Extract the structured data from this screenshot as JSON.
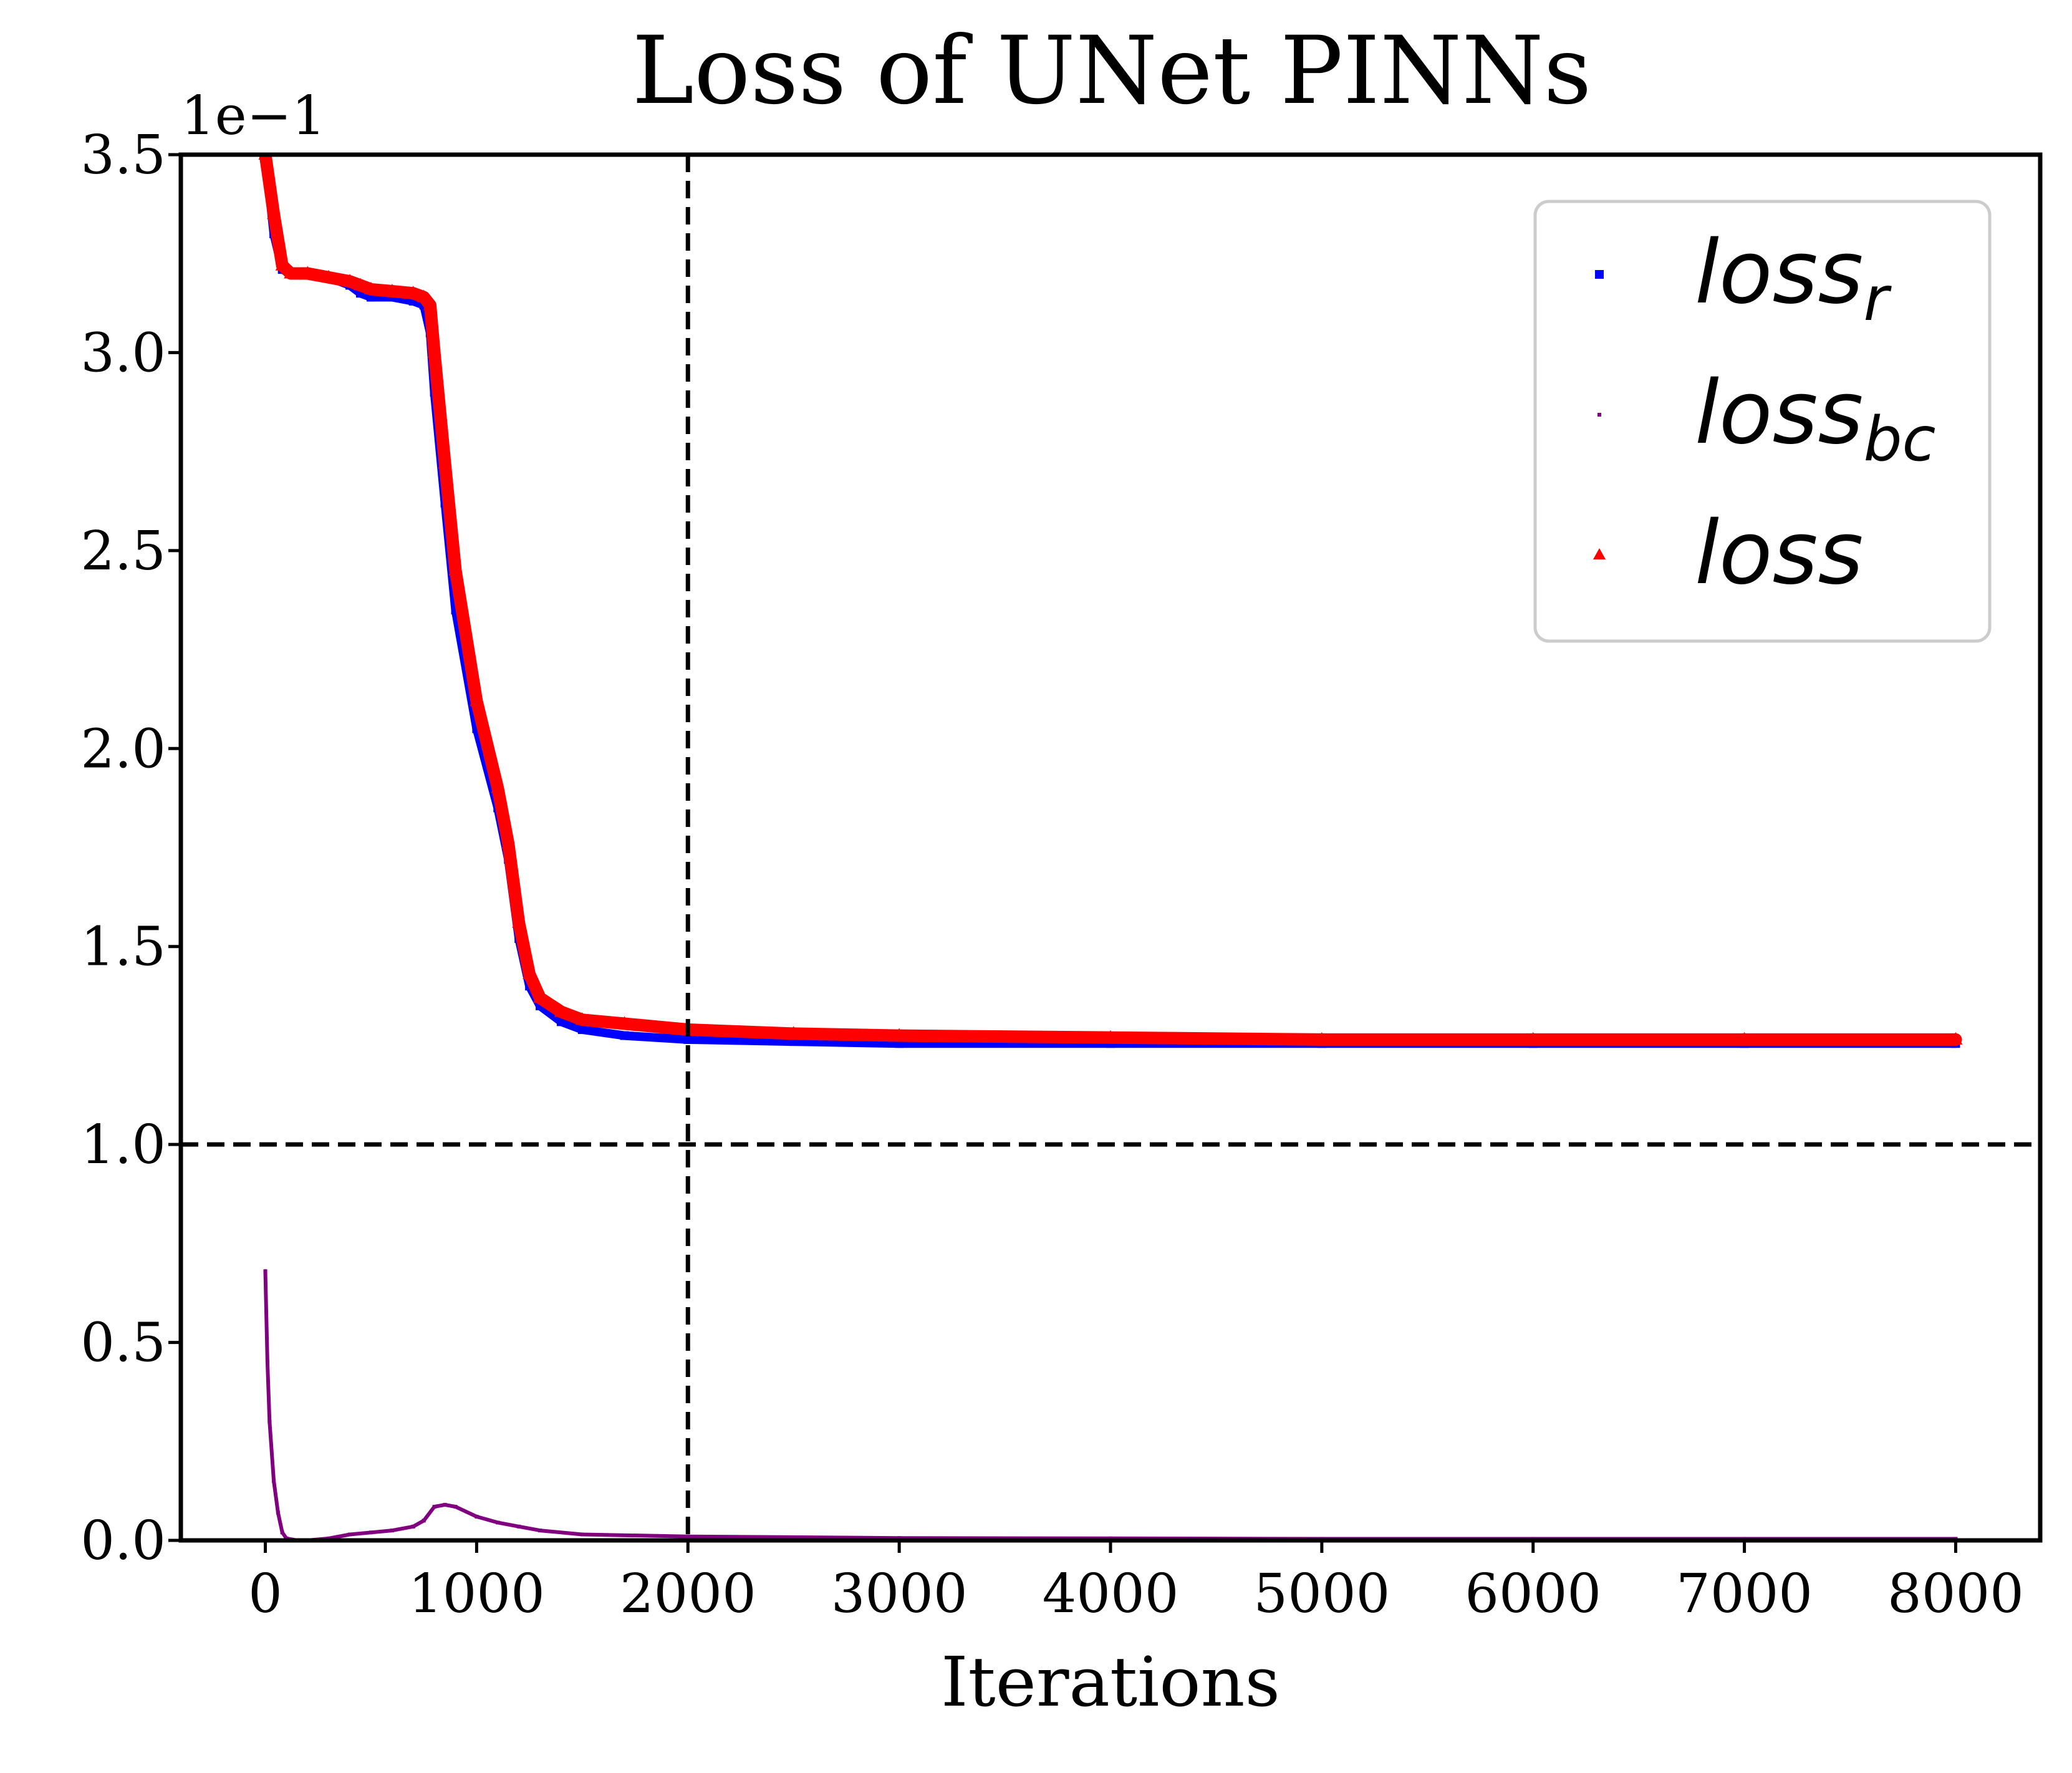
{
  "chart_data": {
    "type": "line",
    "title": "Loss of UNet PINNs",
    "xlabel": "Iterations",
    "ylabel": "",
    "xlim": [
      -400,
      8400
    ],
    "ylim": [
      0,
      3.5
    ],
    "y_offset_text": "1e−1",
    "xticks": [
      0,
      1000,
      2000,
      3000,
      4000,
      5000,
      6000,
      7000,
      8000
    ],
    "xtick_labels": [
      "0",
      "1000",
      "2000",
      "3000",
      "4000",
      "5000",
      "6000",
      "7000",
      "8000"
    ],
    "yticks": [
      0,
      0.5,
      1.0,
      1.5,
      2.0,
      2.5,
      3.0,
      3.5
    ],
    "ytick_labels": [
      "0.0",
      "0.5",
      "1.0",
      "1.5",
      "2.0",
      "2.5",
      "3.0",
      "3.5"
    ],
    "grid": false,
    "legend_position": "top-right",
    "reference_lines": [
      {
        "orientation": "horizontal",
        "value": 1.0,
        "style": "dashed",
        "color": "#000000"
      },
      {
        "orientation": "vertical",
        "value": 2000,
        "style": "dashed",
        "color": "#000000"
      }
    ],
    "series": [
      {
        "name": "loss",
        "name_sub": "r",
        "marker": "square",
        "color": "#0000ff",
        "x": [
          0,
          40,
          80,
          120,
          200,
          300,
          400,
          450,
          500,
          600,
          700,
          750,
          780,
          800,
          850,
          900,
          1000,
          1100,
          1150,
          1200,
          1250,
          1300,
          1400,
          1500,
          1700,
          2000,
          2500,
          3000,
          4000,
          5000,
          6000,
          7000,
          8000
        ],
        "y": [
          3.5,
          3.3,
          3.21,
          3.2,
          3.2,
          3.19,
          3.17,
          3.15,
          3.14,
          3.14,
          3.13,
          3.12,
          3.05,
          2.9,
          2.62,
          2.35,
          2.05,
          1.85,
          1.72,
          1.52,
          1.4,
          1.35,
          1.31,
          1.29,
          1.275,
          1.265,
          1.26,
          1.255,
          1.255,
          1.255,
          1.255,
          1.255,
          1.255
        ]
      },
      {
        "name": "loss",
        "name_sub": "bc",
        "marker": "pixel",
        "color": "#800080",
        "x": [
          0,
          10,
          20,
          40,
          60,
          80,
          100,
          150,
          200,
          300,
          400,
          500,
          600,
          700,
          750,
          800,
          850,
          900,
          1000,
          1100,
          1200,
          1300,
          1500,
          2000,
          3000,
          4000,
          5000,
          6000,
          7000,
          8000
        ],
        "y": [
          0.68,
          0.45,
          0.3,
          0.15,
          0.07,
          0.02,
          0.005,
          0.0,
          0.0,
          0.005,
          0.015,
          0.02,
          0.025,
          0.035,
          0.05,
          0.085,
          0.09,
          0.085,
          0.06,
          0.045,
          0.035,
          0.025,
          0.015,
          0.01,
          0.006,
          0.005,
          0.004,
          0.004,
          0.004,
          0.004
        ]
      },
      {
        "name": "loss",
        "name_sub": "",
        "marker": "triangle",
        "color": "#ff0000",
        "x": [
          0,
          40,
          80,
          120,
          200,
          300,
          400,
          450,
          500,
          600,
          700,
          750,
          780,
          800,
          850,
          900,
          1000,
          1100,
          1150,
          1200,
          1250,
          1300,
          1400,
          1500,
          1700,
          2000,
          2500,
          3000,
          4000,
          5000,
          6000,
          7000,
          8000
        ],
        "y": [
          3.5,
          3.35,
          3.22,
          3.2,
          3.2,
          3.19,
          3.18,
          3.17,
          3.16,
          3.155,
          3.15,
          3.14,
          3.12,
          3.0,
          2.72,
          2.45,
          2.12,
          1.9,
          1.76,
          1.56,
          1.43,
          1.37,
          1.335,
          1.315,
          1.305,
          1.29,
          1.28,
          1.275,
          1.27,
          1.265,
          1.265,
          1.265,
          1.265
        ]
      }
    ]
  }
}
